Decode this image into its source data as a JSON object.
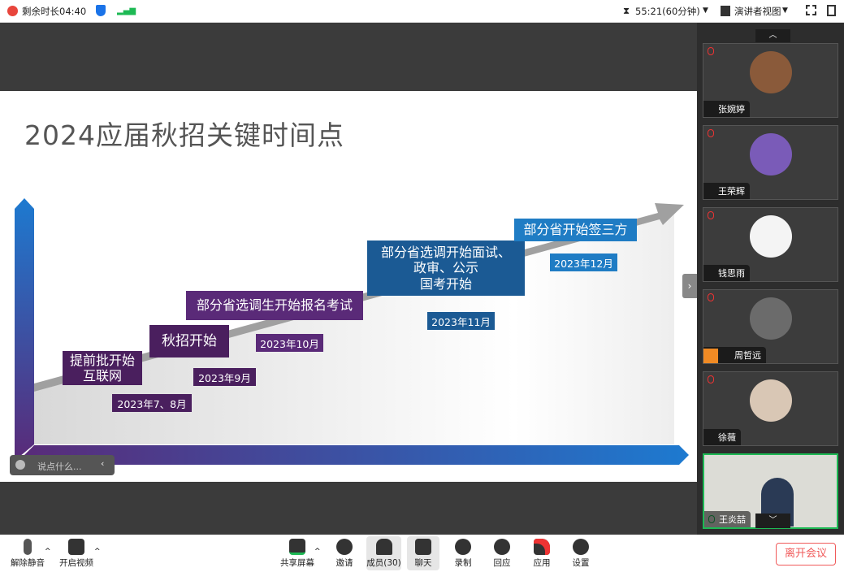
{
  "topbar": {
    "remaining": "剩余时长04:40",
    "timer": "55:21(60分钟)",
    "view": "演讲者视图"
  },
  "slide": {
    "title": "2024应届秋招关键时间点",
    "milestones": [
      {
        "text": "提前批开始\n互联网",
        "date": "2023年7、8月"
      },
      {
        "text": "秋招开始",
        "date": "2023年9月"
      },
      {
        "text": "部分省选调生开始报名考试",
        "date": "2023年10月"
      },
      {
        "text": "部分省选调开始面试、\n政审、公示\n国考开始",
        "date": "2023年11月"
      },
      {
        "text": "部分省开始签三方",
        "date": "2023年12月"
      }
    ]
  },
  "chat": {
    "placeholder": "说点什么..."
  },
  "participants": [
    {
      "name": "张婉婷",
      "muted": true
    },
    {
      "name": "王荣辉",
      "muted": true
    },
    {
      "name": "钱思雨",
      "muted": true
    },
    {
      "name": "周哲远",
      "muted": true
    },
    {
      "name": "徐薇",
      "muted": true
    },
    {
      "name": "王炎喆",
      "muted": false,
      "speaking": true
    }
  ],
  "toolbar": {
    "unmute": "解除静音",
    "video": "开启视频",
    "share": "共享屏幕",
    "invite": "邀请",
    "members": "成员(30)",
    "chat": "聊天",
    "record": "录制",
    "react": "回应",
    "apps": "应用",
    "settings": "设置",
    "leave": "离开会议"
  },
  "colors": {
    "purple": "#4a1f5e",
    "blue_dark": "#1b5a94",
    "blue": "#1f7cc4",
    "accent_green": "#1db954",
    "leave": "#f05a5a"
  }
}
